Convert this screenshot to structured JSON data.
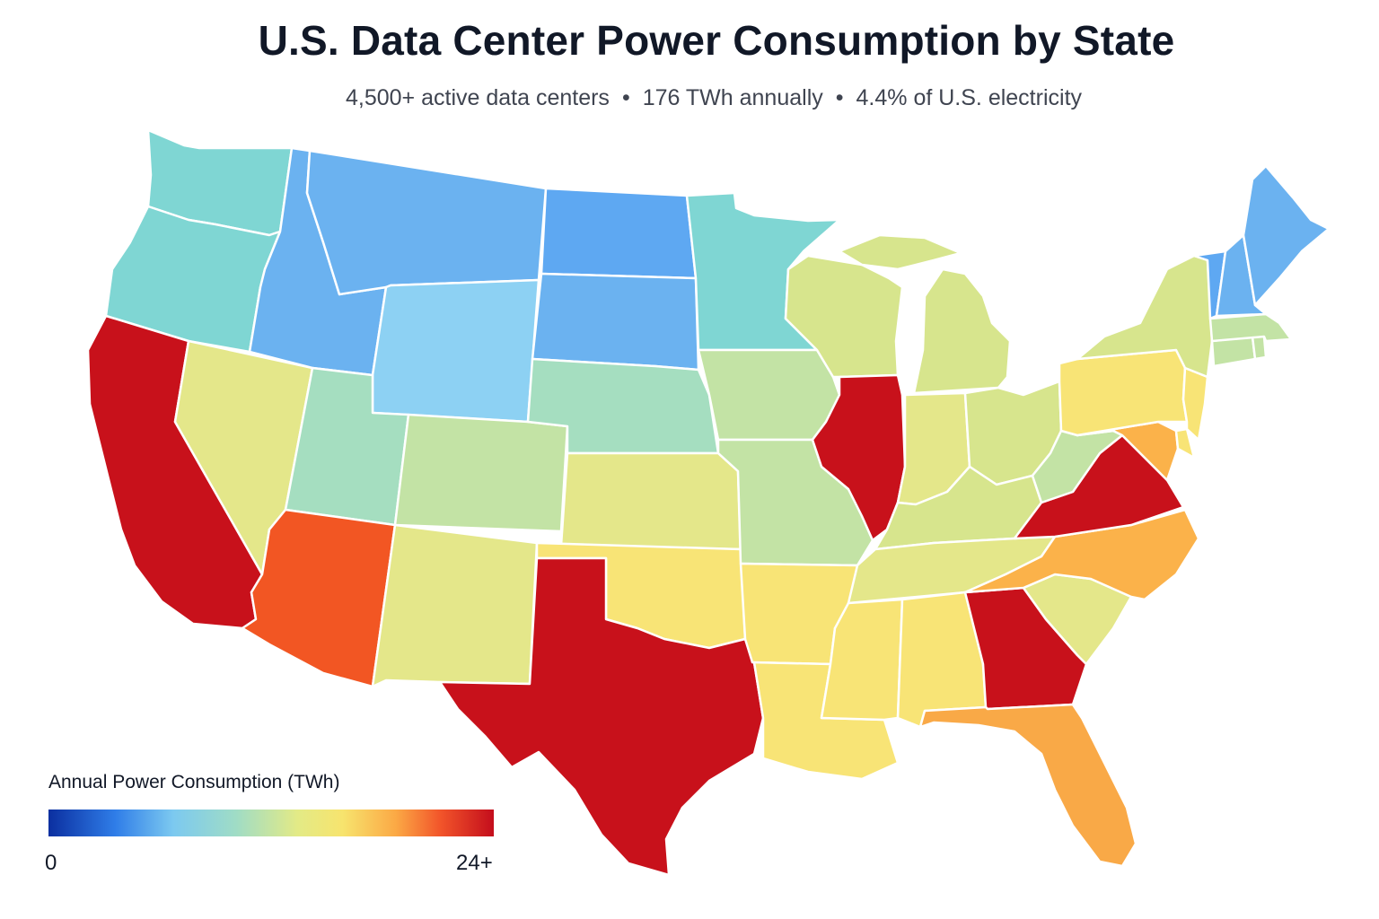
{
  "title": "U.S. Data Center Power Consumption by State",
  "subtitle": {
    "count": "4,500+ active data centers",
    "energy": "176 TWh annually",
    "share": "4.4% of U.S. electricity",
    "separator": "•"
  },
  "legend": {
    "title": "Annual Power Consumption (TWh)",
    "min_label": "0",
    "max_label": "24+"
  },
  "colors": {
    "red": "#c8111b",
    "red_orange": "#f25623",
    "orange": "#f9a947",
    "light_orange": "#fbb24a",
    "yellow": "#f8e476",
    "pale_yellow": "#e4e78a",
    "yellow_green": "#d7e58d",
    "light_green": "#c3e3a5",
    "mint": "#a5dec0",
    "teal": "#7fd6d3",
    "light_blue": "#8dd1f3",
    "blue": "#6bb2f0",
    "mid_blue": "#5ea8f2"
  },
  "states": [
    {
      "name": "WA",
      "color": "teal"
    },
    {
      "name": "OR",
      "color": "teal"
    },
    {
      "name": "CA",
      "color": "red"
    },
    {
      "name": "NV",
      "color": "pale_yellow"
    },
    {
      "name": "ID",
      "color": "blue"
    },
    {
      "name": "MT",
      "color": "blue"
    },
    {
      "name": "WY",
      "color": "light_blue"
    },
    {
      "name": "UT",
      "color": "mint"
    },
    {
      "name": "CO",
      "color": "light_green"
    },
    {
      "name": "AZ",
      "color": "red_orange"
    },
    {
      "name": "NM",
      "color": "pale_yellow"
    },
    {
      "name": "ND",
      "color": "mid_blue"
    },
    {
      "name": "SD",
      "color": "blue"
    },
    {
      "name": "NE",
      "color": "mint"
    },
    {
      "name": "KS",
      "color": "pale_yellow"
    },
    {
      "name": "OK",
      "color": "yellow"
    },
    {
      "name": "TX",
      "color": "red"
    },
    {
      "name": "MN",
      "color": "teal"
    },
    {
      "name": "IA",
      "color": "light_green"
    },
    {
      "name": "MO",
      "color": "light_green"
    },
    {
      "name": "AR",
      "color": "yellow"
    },
    {
      "name": "LA",
      "color": "yellow"
    },
    {
      "name": "WI",
      "color": "yellow_green"
    },
    {
      "name": "IL",
      "color": "red"
    },
    {
      "name": "MI",
      "color": "yellow_green"
    },
    {
      "name": "IN",
      "color": "pale_yellow"
    },
    {
      "name": "OH",
      "color": "yellow_green"
    },
    {
      "name": "KY",
      "color": "yellow_green"
    },
    {
      "name": "TN",
      "color": "pale_yellow"
    },
    {
      "name": "MS",
      "color": "yellow"
    },
    {
      "name": "AL",
      "color": "yellow"
    },
    {
      "name": "GA",
      "color": "red"
    },
    {
      "name": "FL",
      "color": "orange"
    },
    {
      "name": "SC",
      "color": "pale_yellow"
    },
    {
      "name": "NC",
      "color": "light_orange"
    },
    {
      "name": "VA",
      "color": "red"
    },
    {
      "name": "WV",
      "color": "light_green"
    },
    {
      "name": "MD",
      "color": "light_orange"
    },
    {
      "name": "DE",
      "color": "yellow"
    },
    {
      "name": "PA",
      "color": "yellow"
    },
    {
      "name": "NJ",
      "color": "yellow"
    },
    {
      "name": "NY",
      "color": "yellow_green"
    },
    {
      "name": "CT",
      "color": "light_green"
    },
    {
      "name": "RI",
      "color": "light_green"
    },
    {
      "name": "MA",
      "color": "light_green"
    },
    {
      "name": "VT",
      "color": "mid_blue"
    },
    {
      "name": "NH",
      "color": "blue"
    },
    {
      "name": "ME",
      "color": "blue"
    }
  ]
}
